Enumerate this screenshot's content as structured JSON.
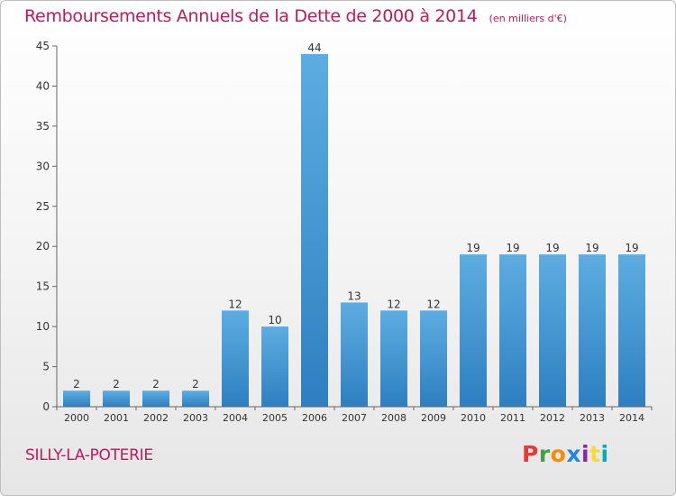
{
  "header": {
    "title": "Remboursements Annuels de la Dette de 2000 à 2014",
    "unit": "(en milliers d'€)"
  },
  "footer": {
    "commune": "SILLY-LA-POTERIE",
    "brand": "Proxiti",
    "brand_colors": [
      "#e53935",
      "#43a047",
      "#fb8c00",
      "#1e88e5",
      "#8e24aa",
      "#fdd835",
      "#00acc1"
    ]
  },
  "colors": {
    "bar_light": "#5dade2",
    "bar_dark": "#2e7fc0",
    "title": "#c2185b"
  },
  "chart_data": {
    "type": "bar",
    "title": "Remboursements Annuels de la Dette de 2000 à 2014",
    "subtitle": "(en milliers d'€)",
    "categories": [
      "2000",
      "2001",
      "2002",
      "2003",
      "2004",
      "2005",
      "2006",
      "2007",
      "2008",
      "2009",
      "2010",
      "2011",
      "2012",
      "2013",
      "2014"
    ],
    "values": [
      2,
      2,
      2,
      2,
      12,
      10,
      44,
      13,
      12,
      12,
      19,
      19,
      19,
      19,
      19
    ],
    "ylim": [
      0,
      45
    ],
    "yticks": [
      0,
      5,
      10,
      15,
      20,
      25,
      30,
      35,
      40,
      45
    ],
    "grid": false,
    "data_labels": true
  }
}
